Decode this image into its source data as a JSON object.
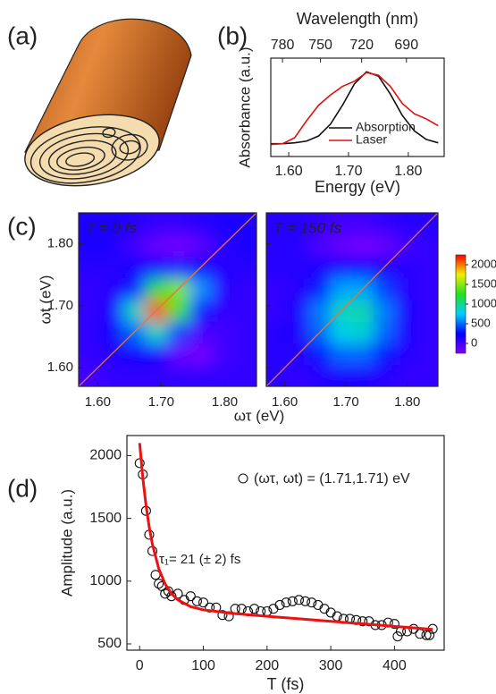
{
  "panels": [
    "(a)",
    "(b)",
    "(c)",
    "(d)"
  ],
  "chart_data": [
    {
      "type": "line",
      "xlabel": "Energy (eV)",
      "ylabel": "Absorbance (a.u.)",
      "x2label": "Wavelength (nm)",
      "x2ticks": [
        780,
        750,
        720,
        690
      ],
      "xlim": [
        1.57,
        1.86
      ],
      "ylim": [
        0,
        1.15
      ],
      "xticks": [
        {
          "value": 1.6,
          "label": "1.60"
        },
        {
          "value": 1.7,
          "label": "1.70"
        },
        {
          "value": 1.8,
          "label": "1.80"
        }
      ],
      "x": [
        1.57,
        1.59,
        1.61,
        1.63,
        1.65,
        1.67,
        1.69,
        1.71,
        1.73,
        1.75,
        1.77,
        1.79,
        1.81,
        1.83,
        1.85
      ],
      "series": [
        {
          "name": "Absorption",
          "color": "#111111",
          "values": [
            0.15,
            0.15,
            0.16,
            0.18,
            0.24,
            0.38,
            0.6,
            0.85,
            0.99,
            0.94,
            0.73,
            0.48,
            0.3,
            0.2,
            0.16
          ]
        },
        {
          "name": "Laser",
          "color": "#e01010",
          "values": [
            0.14,
            0.15,
            0.22,
            0.42,
            0.6,
            0.72,
            0.82,
            0.88,
            0.98,
            0.95,
            0.82,
            0.62,
            0.5,
            0.44,
            0.36
          ]
        }
      ]
    },
    {
      "type": "heatmap",
      "title": "T = 0 fs",
      "xlabel": "ωτ (eV)",
      "ylabel": "ωt (eV)",
      "xlim": [
        1.57,
        1.85
      ],
      "ylim": [
        1.57,
        1.85
      ],
      "xticks": [
        {
          "value": 1.6,
          "label": "1.60"
        },
        {
          "value": 1.7,
          "label": "1.70"
        },
        {
          "value": 1.8,
          "label": "1.80"
        }
      ],
      "yticks": [
        {
          "value": 1.6,
          "label": "1.60"
        },
        {
          "value": 1.7,
          "label": "1.70"
        },
        {
          "value": 1.8,
          "label": "1.80"
        }
      ],
      "zlim": [
        -250,
        2250
      ],
      "colormap": [
        "#8000ff",
        "#0000ff",
        "#00d0ff",
        "#20e020",
        "#f0f000",
        "#ff0000"
      ],
      "x": [
        1.5875,
        1.6225,
        1.6575,
        1.6925,
        1.7275,
        1.7625,
        1.7975,
        1.8325
      ],
      "y": [
        1.5875,
        1.6225,
        1.6575,
        1.6925,
        1.7275,
        1.7625,
        1.7975,
        1.8325
      ],
      "z": [
        [
          0,
          50,
          50,
          50,
          50,
          50,
          50,
          50
        ],
        [
          50,
          100,
          200,
          150,
          -150,
          -200,
          0,
          50
        ],
        [
          50,
          200,
          500,
          900,
          400,
          -50,
          0,
          50
        ],
        [
          50,
          150,
          900,
          2100,
          1300,
          300,
          50,
          50
        ],
        [
          50,
          100,
          300,
          1200,
          1500,
          600,
          100,
          50
        ],
        [
          100,
          100,
          150,
          200,
          300,
          200,
          100,
          100
        ],
        [
          150,
          150,
          0,
          -150,
          -200,
          -100,
          100,
          150
        ],
        [
          150,
          150,
          100,
          50,
          50,
          100,
          150,
          150
        ]
      ]
    },
    {
      "type": "heatmap",
      "title": "T = 150 fs",
      "xlim": [
        1.57,
        1.85
      ],
      "ylim": [
        1.57,
        1.85
      ],
      "xticks": [
        {
          "value": 1.6,
          "label": "1.60"
        },
        {
          "value": 1.7,
          "label": "1.70"
        },
        {
          "value": 1.8,
          "label": "1.80"
        }
      ],
      "yticks": [
        1.6,
        1.7,
        1.8
      ],
      "zlim": [
        -250,
        2250
      ],
      "zticks": [
        0,
        500,
        1000,
        1500,
        2000
      ],
      "colormap": [
        "#8000ff",
        "#0000ff",
        "#00d0ff",
        "#20e020",
        "#f0f000",
        "#ff0000"
      ],
      "x": [
        1.5875,
        1.6225,
        1.6575,
        1.6925,
        1.7275,
        1.7625,
        1.7975,
        1.8325
      ],
      "y": [
        1.5875,
        1.6225,
        1.6575,
        1.6925,
        1.7275,
        1.7625,
        1.7975,
        1.8325
      ],
      "z": [
        [
          100,
          50,
          100,
          150,
          150,
          100,
          50,
          50
        ],
        [
          100,
          100,
          300,
          500,
          500,
          300,
          100,
          50
        ],
        [
          100,
          150,
          500,
          800,
          850,
          500,
          150,
          50
        ],
        [
          50,
          150,
          550,
          900,
          950,
          550,
          150,
          50
        ],
        [
          50,
          100,
          300,
          650,
          650,
          400,
          100,
          50
        ],
        [
          100,
          100,
          150,
          200,
          250,
          150,
          100,
          50
        ],
        [
          100,
          100,
          -50,
          -150,
          -200,
          -150,
          0,
          50
        ],
        [
          100,
          100,
          50,
          0,
          0,
          50,
          100,
          100
        ]
      ]
    },
    {
      "type": "scatter",
      "xlabel": "T (fs)",
      "ylabel": "Amplitude (a.u.)",
      "annotation": "τ₁= 21 (± 2) fs",
      "xlim": [
        -20,
        478
      ],
      "ylim": [
        450,
        2160
      ],
      "xticks": [
        0,
        100,
        200,
        300,
        400
      ],
      "yticks": [
        500,
        1000,
        1500,
        2000
      ],
      "series": [
        {
          "name": "(ωτ, ωt) = (1.71,1.71) eV",
          "color": "#111111",
          "x": [
            0,
            5,
            10,
            15,
            20,
            25,
            30,
            35,
            40,
            45,
            50,
            60,
            70,
            80,
            90,
            100,
            110,
            120,
            130,
            140,
            150,
            160,
            170,
            180,
            190,
            200,
            210,
            220,
            230,
            240,
            250,
            260,
            270,
            280,
            290,
            300,
            310,
            320,
            330,
            340,
            350,
            360,
            370,
            380,
            390,
            400,
            405,
            410,
            420,
            430,
            440,
            450,
            455,
            460
          ],
          "values": [
            1940,
            1850,
            1560,
            1370,
            1240,
            1050,
            980,
            960,
            900,
            920,
            880,
            900,
            850,
            880,
            840,
            830,
            790,
            790,
            730,
            720,
            780,
            780,
            760,
            780,
            760,
            760,
            780,
            810,
            830,
            840,
            850,
            840,
            830,
            810,
            780,
            750,
            720,
            700,
            700,
            690,
            680,
            680,
            650,
            650,
            670,
            660,
            560,
            600,
            600,
            620,
            580,
            570,
            570,
            620
          ]
        },
        {
          "color": "#ee1111",
          "x": [
            0,
            5,
            10,
            15,
            20,
            30,
            40,
            50,
            60,
            80,
            100,
            150,
            200,
            250,
            300,
            350,
            400,
            460
          ],
          "values": [
            2100,
            1822,
            1604,
            1431,
            1294,
            1100,
            978,
            900,
            851,
            797,
            771,
            741,
            720,
            700,
            680,
            660,
            640,
            616
          ]
        }
      ]
    }
  ]
}
